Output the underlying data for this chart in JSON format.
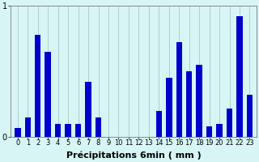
{
  "xlabel": "Précipitations 6min ( mm )",
  "background_color": "#d8f5f5",
  "bar_color": "#0000cc",
  "grid_color": "#aacece",
  "ylim": [
    0,
    1.0
  ],
  "yticks": [
    0,
    1
  ],
  "categories": [
    "0",
    "1",
    "2",
    "3",
    "4",
    "5",
    "6",
    "7",
    "8",
    "9",
    "10",
    "11",
    "12",
    "13",
    "14",
    "15",
    "16",
    "17",
    "18",
    "19",
    "20",
    "21",
    "22",
    "23"
  ],
  "values": [
    0.07,
    0.15,
    0.78,
    0.65,
    0.1,
    0.1,
    0.1,
    0.42,
    0.15,
    0.0,
    0.0,
    0.0,
    0.0,
    0.0,
    0.2,
    0.45,
    0.72,
    0.5,
    0.55,
    0.08,
    0.1,
    0.22,
    0.92,
    0.32
  ],
  "xlabel_fontsize": 8,
  "tick_fontsize": 6,
  "ytick_fontsize": 7,
  "bar_width": 0.6
}
